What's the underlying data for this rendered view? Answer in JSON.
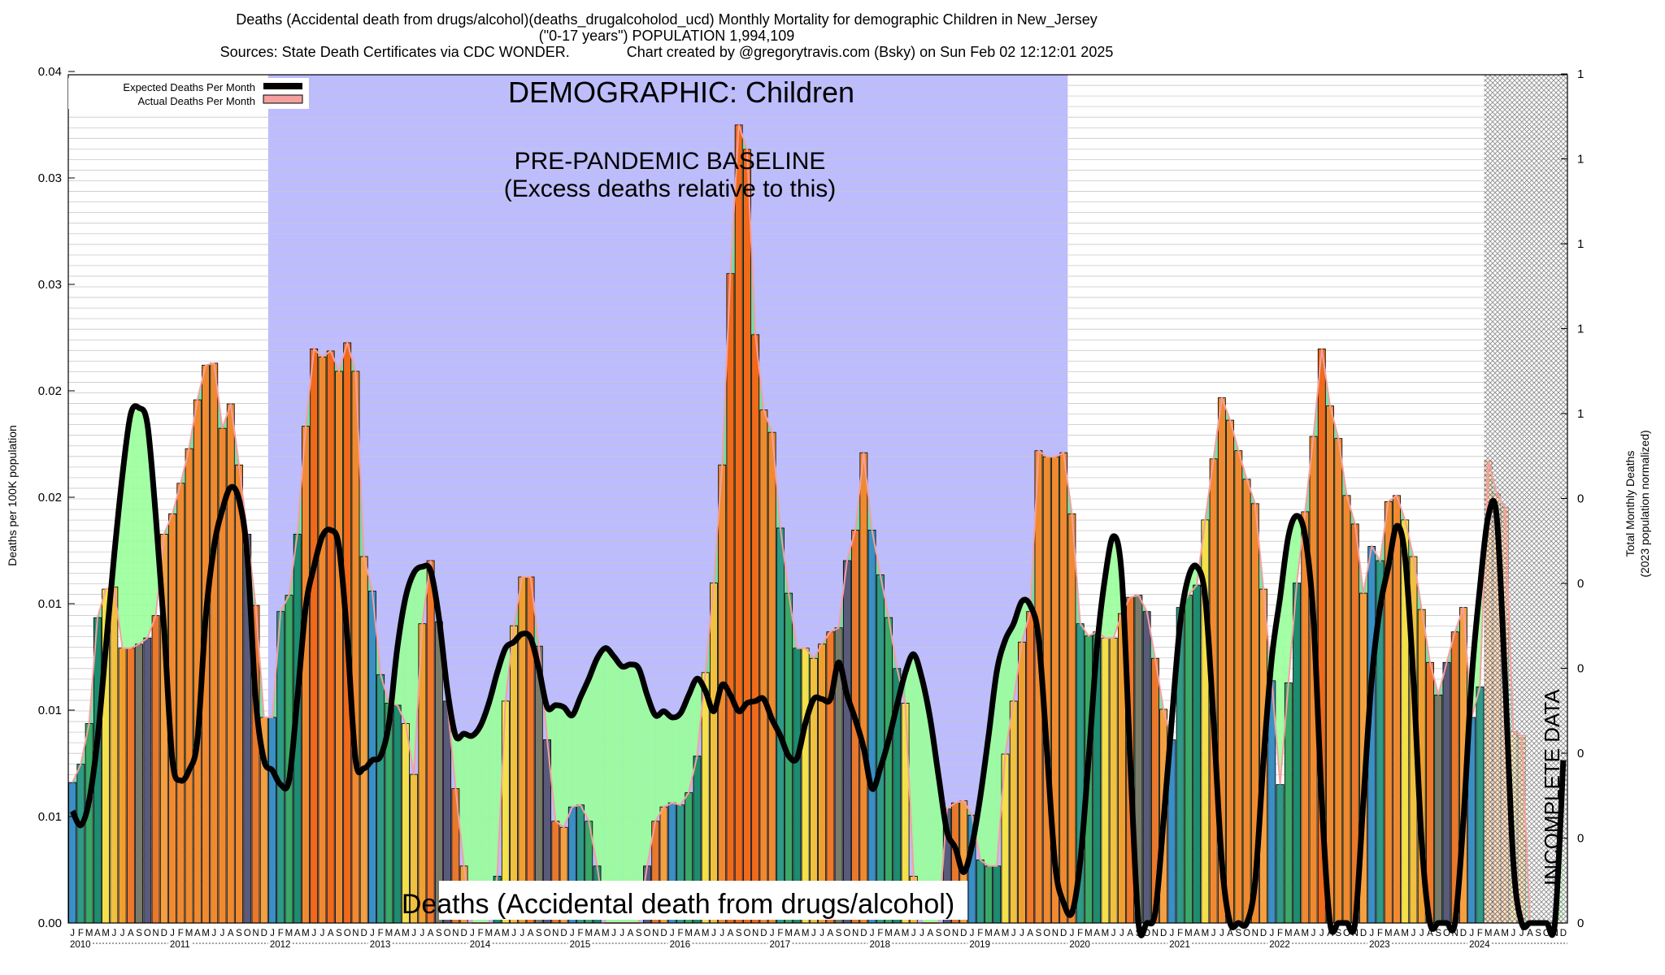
{
  "title": {
    "line1": "Deaths (Accidental death from drugs/alcohol)(deaths_drugalcoholod_ucd) Monthly Mortality for demographic Children in New_Jersey",
    "line2": "(\"0-17 years\") POPULATION 1,994,109",
    "line3": "Sources: State Death Certificates via CDC WONDER.              Chart created by @gregorytravis.com (Bsky) on Sun Feb 02 12:12:01 2025"
  },
  "legend": {
    "expected": "Expected Deaths Per Month",
    "actual": "Actual Deaths Per Month",
    "position": "top-left"
  },
  "annotations": {
    "demographic": "DEMOGRAPHIC: Children",
    "baseline_line1": "PRE-PANDEMIC BASELINE",
    "baseline_line2": "(Excess deaths relative to this)",
    "bottom_label": "Deaths (Accidental death from drugs/alcohol)",
    "incomplete": "INCOMPLETE DATA"
  },
  "colors": {
    "baseline_region": "#bcbcff",
    "expected_line": "#000000",
    "actual_outline": "#f4a0a0",
    "excess_fill": "#99ff99",
    "deficit_fill": "#70dba0",
    "incomplete_hatch": "#888888"
  },
  "chart_data": {
    "type": "bar",
    "ylabel": "Deaths per 100K population",
    "y2label_line1": "Total Monthly Deaths",
    "y2label_line2": "(2023 population normalized)",
    "ylim": [
      0,
      0.04
    ],
    "yticks": [
      "0.00",
      "0.01",
      "0.01",
      "0.01",
      "0.02",
      "0.02",
      "0.03",
      "0.03",
      "0.04"
    ],
    "y2ticks": [
      "0",
      "0",
      "0",
      "0",
      "0",
      "0",
      "1",
      "1",
      "1",
      "1",
      "1"
    ],
    "month_letters": [
      "J",
      "F",
      "M",
      "A",
      "M",
      "J",
      "J",
      "A",
      "S",
      "O",
      "N",
      "D"
    ],
    "years": [
      "2010",
      "2011",
      "2012",
      "2013",
      "2014",
      "2015",
      "2016",
      "2017",
      "2018",
      "2019",
      "2020",
      "2021",
      "2022",
      "2023",
      "2024"
    ],
    "baseline_period": [
      "2012-01",
      "2019-12"
    ],
    "incomplete_period": [
      "2024-03",
      "2024-12"
    ],
    "grid": true,
    "actual": [
      0.0069,
      0.0078,
      0.0098,
      0.015,
      0.0164,
      0.0165,
      0.0135,
      0.0135,
      0.0137,
      0.014,
      0.0151,
      0.0191,
      0.0201,
      0.0216,
      0.0233,
      0.0257,
      0.0274,
      0.0275,
      0.0243,
      0.0255,
      0.0225,
      0.0191,
      0.0156,
      0.0101,
      0.0101,
      0.0153,
      0.0161,
      0.0191,
      0.0244,
      0.0282,
      0.0278,
      0.0281,
      0.0271,
      0.0285,
      0.0271,
      0.018,
      0.0163,
      0.0122,
      0.0108,
      0.0107,
      0.0098,
      0.0073,
      0.0147,
      0.0178,
      0.0148,
      0.0109,
      0.0066,
      0.0028,
      0.0,
      0.0,
      0.0,
      0.0023,
      0.0109,
      0.0146,
      0.017,
      0.017,
      0.0136,
      0.009,
      0.005,
      0.0047,
      0.0057,
      0.0058,
      0.005,
      0.0028,
      0.0,
      0.0,
      0.0,
      0.0,
      0.0,
      0.0028,
      0.005,
      0.0057,
      0.0059,
      0.0058,
      0.0064,
      0.0082,
      0.0123,
      0.0167,
      0.0225,
      0.0319,
      0.0392,
      0.038,
      0.0289,
      0.0252,
      0.0241,
      0.0194,
      0.0162,
      0.0135,
      0.0135,
      0.013,
      0.0137,
      0.0143,
      0.0145,
      0.0178,
      0.0193,
      0.0231,
      0.0193,
      0.0171,
      0.015,
      0.0125,
      0.0108,
      0.0023,
      0.0,
      0.0,
      0.0,
      0.0056,
      0.0059,
      0.006,
      0.0053,
      0.0031,
      0.0028,
      0.0028,
      0.0083,
      0.0109,
      0.0138,
      0.0153,
      0.0232,
      0.0229,
      0.0229,
      0.0231,
      0.0201,
      0.0147,
      0.0141,
      0.0143,
      0.014,
      0.014,
      0.0152,
      0.016,
      0.0161,
      0.0153,
      0.013,
      0.0105,
      0.009,
      0.0155,
      0.0161,
      0.0166,
      0.0198,
      0.0228,
      0.0258,
      0.0247,
      0.0232,
      0.0218,
      0.0206,
      0.0164,
      0.0119,
      0.0068,
      0.0118,
      0.0167,
      0.0202,
      0.0239,
      0.0282,
      0.0254,
      0.0238,
      0.021,
      0.0196,
      0.0162,
      0.0185,
      0.0178,
      0.0207,
      0.021,
      0.0198,
      0.018,
      0.0154,
      0.0128,
      0.0112,
      0.0128,
      0.0143,
      0.0155,
      0.0101,
      0.0116,
      0.0227,
      0.0211,
      0.0204,
      0.0094,
      0.0092,
      0.0,
      0.0,
      0.0,
      0.0,
      0.0
    ],
    "expected": [
      0.0055,
      0.0048,
      0.006,
      0.009,
      0.0135,
      0.018,
      0.022,
      0.025,
      0.0253,
      0.0245,
      0.02,
      0.0145,
      0.008,
      0.007,
      0.0075,
      0.009,
      0.015,
      0.0185,
      0.0203,
      0.0214,
      0.0208,
      0.018,
      0.011,
      0.008,
      0.0075,
      0.0068,
      0.007,
      0.011,
      0.0155,
      0.0175,
      0.019,
      0.0193,
      0.0185,
      0.014,
      0.008,
      0.0076,
      0.008,
      0.0082,
      0.0098,
      0.0135,
      0.016,
      0.0172,
      0.0175,
      0.0173,
      0.015,
      0.0115,
      0.0092,
      0.0093,
      0.0092,
      0.0097,
      0.0108,
      0.0123,
      0.0135,
      0.0138,
      0.0142,
      0.014,
      0.0125,
      0.0106,
      0.0107,
      0.0106,
      0.0102,
      0.0111,
      0.012,
      0.013,
      0.0135,
      0.0131,
      0.0126,
      0.0127,
      0.0125,
      0.0112,
      0.0102,
      0.0104,
      0.0101,
      0.0103,
      0.0112,
      0.012,
      0.0114,
      0.0104,
      0.0117,
      0.0112,
      0.0104,
      0.0108,
      0.0109,
      0.011,
      0.01,
      0.0092,
      0.0082,
      0.0081,
      0.0098,
      0.011,
      0.011,
      0.011,
      0.0128,
      0.0112,
      0.01,
      0.0086,
      0.0066,
      0.0076,
      0.009,
      0.0107,
      0.0123,
      0.0132,
      0.012,
      0.01,
      0.0072,
      0.0045,
      0.0037,
      0.0025,
      0.0038,
      0.0062,
      0.0092,
      0.0124,
      0.0139,
      0.0147,
      0.0158,
      0.0156,
      0.014,
      0.0085,
      0.0028,
      0.001,
      0.0005,
      0.003,
      0.008,
      0.0135,
      0.017,
      0.019,
      0.017,
      0.008,
      0.0,
      0.0,
      0.0005,
      0.005,
      0.01,
      0.0147,
      0.017,
      0.0175,
      0.016,
      0.01,
      0.003,
      0.0,
      0.0,
      0.0,
      0.002,
      0.008,
      0.013,
      0.016,
      0.019,
      0.02,
      0.019,
      0.015,
      0.006,
      0.0,
      0.0,
      0.0,
      0.0,
      0.006,
      0.012,
      0.0155,
      0.0175,
      0.0195,
      0.018,
      0.012,
      0.004,
      0.0,
      0.0,
      0.0,
      0.0,
      0.005,
      0.012,
      0.0165,
      0.02,
      0.02,
      0.012,
      0.003,
      0.0,
      0.0,
      0.0,
      0.0,
      0.0,
      0.008
    ]
  }
}
